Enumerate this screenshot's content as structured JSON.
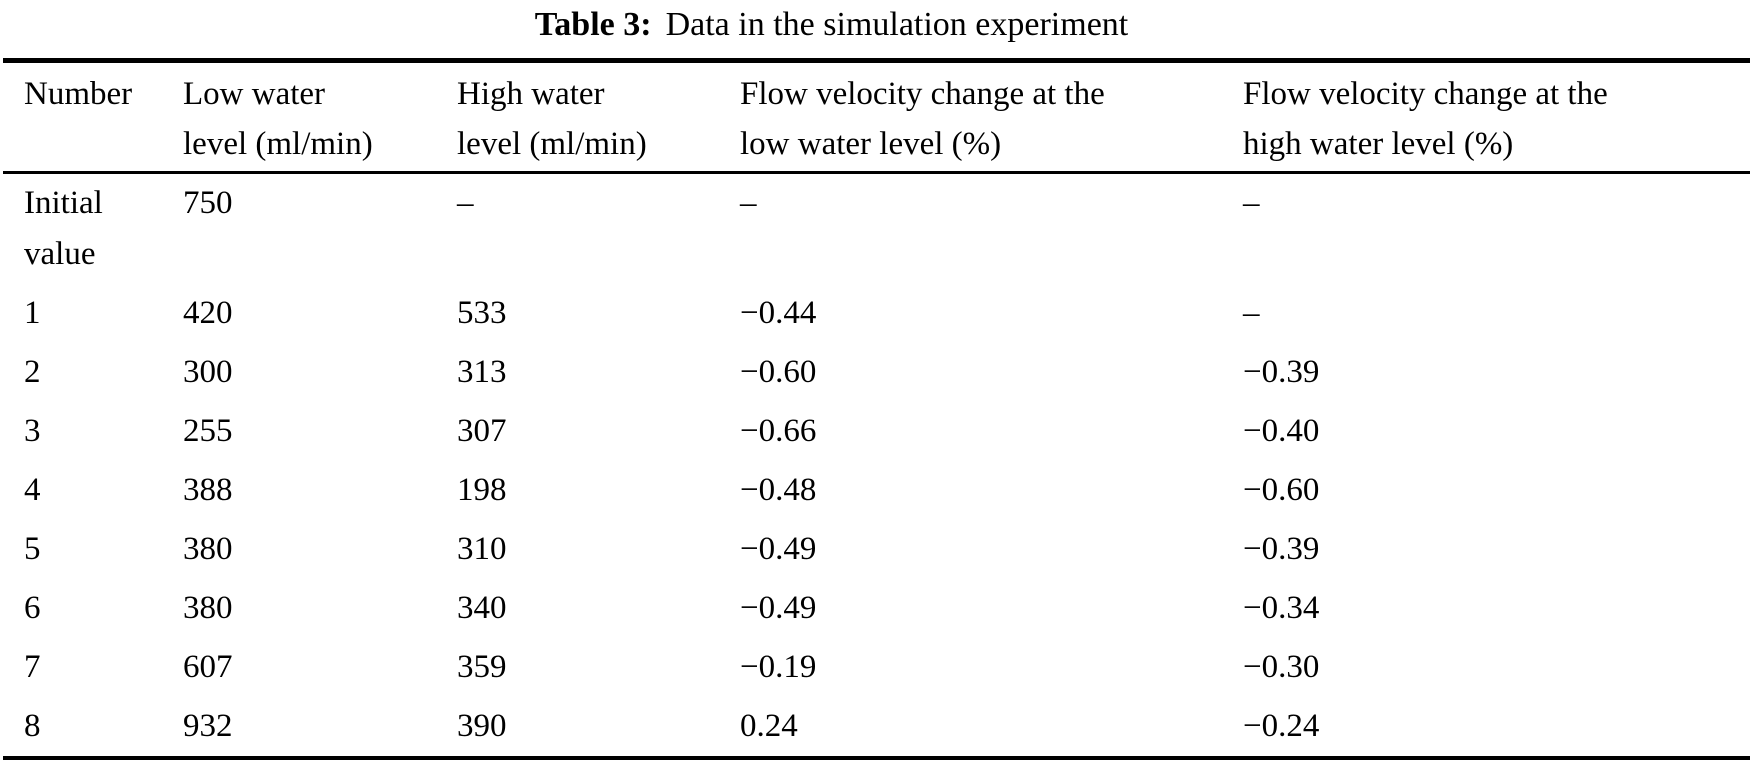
{
  "caption": {
    "label": "Table 3:",
    "text": "Data in the simulation experiment"
  },
  "table": {
    "headers": [
      [
        "Number"
      ],
      [
        "Low water",
        "level (ml/min)"
      ],
      [
        "High water",
        "level (ml/min)"
      ],
      [
        "Flow velocity change at the",
        "low water level (%)"
      ],
      [
        "Flow velocity change at the",
        "high water level (%)"
      ]
    ],
    "rows": [
      {
        "number": [
          "Initial",
          "value"
        ],
        "low": "750",
        "high": "–",
        "flow_low": "–",
        "flow_high": "–"
      },
      {
        "number": "1",
        "low": "420",
        "high": "533",
        "flow_low": "−0.44",
        "flow_high": "–"
      },
      {
        "number": "2",
        "low": "300",
        "high": "313",
        "flow_low": "−0.60",
        "flow_high": "−0.39"
      },
      {
        "number": "3",
        "low": "255",
        "high": "307",
        "flow_low": "−0.66",
        "flow_high": "−0.40"
      },
      {
        "number": "4",
        "low": "388",
        "high": "198",
        "flow_low": "−0.48",
        "flow_high": "−0.60"
      },
      {
        "number": "5",
        "low": "380",
        "high": "310",
        "flow_low": "−0.49",
        "flow_high": "−0.39"
      },
      {
        "number": "6",
        "low": "380",
        "high": "340",
        "flow_low": "−0.49",
        "flow_high": "−0.34"
      },
      {
        "number": "7",
        "low": "607",
        "high": "359",
        "flow_low": "−0.19",
        "flow_high": "−0.30"
      },
      {
        "number": "8",
        "low": "932",
        "high": "390",
        "flow_low": "0.24",
        "flow_high": "−0.24"
      }
    ],
    "text_color": "#000000",
    "background_color": "#ffffff"
  }
}
